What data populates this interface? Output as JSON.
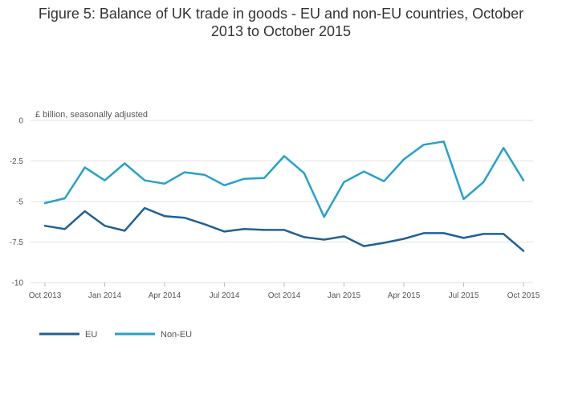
{
  "chart_data": {
    "type": "line",
    "title_line1": "Figure 5: Balance of UK trade in goods - EU and non-EU countries, October",
    "title_line2": "2013 to October 2015",
    "ylabel": "£ billion, seasonally adjusted",
    "ylim": [
      -10,
      0
    ],
    "yticks": [
      0,
      -2.5,
      -5,
      -7.5,
      -10
    ],
    "ytick_labels": [
      "0",
      "-2.5",
      "-5",
      "-7.5",
      "-10"
    ],
    "xtick_labels": [
      "Oct 2013",
      "Jan 2014",
      "Apr 2014",
      "Jul 2014",
      "Oct 2014",
      "Jan 2015",
      "Apr 2015",
      "Jul 2015",
      "Oct 2015"
    ],
    "xtick_indices": [
      0,
      3,
      6,
      9,
      12,
      15,
      18,
      21,
      24
    ],
    "categories": [
      "Oct 2013",
      "Nov 2013",
      "Dec 2013",
      "Jan 2014",
      "Feb 2014",
      "Mar 2014",
      "Apr 2014",
      "May 2014",
      "Jun 2014",
      "Jul 2014",
      "Aug 2014",
      "Sep 2014",
      "Oct 2014",
      "Nov 2014",
      "Dec 2014",
      "Jan 2015",
      "Feb 2015",
      "Mar 2015",
      "Apr 2015",
      "May 2015",
      "Jun 2015",
      "Jul 2015",
      "Aug 2015",
      "Sep 2015",
      "Oct 2015"
    ],
    "series": [
      {
        "name": "EU",
        "color": "#206095",
        "values": [
          -6.5,
          -6.7,
          -5.6,
          -6.5,
          -6.8,
          -5.4,
          -5.9,
          -6.0,
          -6.4,
          -6.85,
          -6.7,
          -6.75,
          -6.75,
          -7.2,
          -7.35,
          -7.15,
          -7.75,
          -7.55,
          -7.3,
          -6.95,
          -6.95,
          -7.25,
          -7.0,
          -7.0,
          -8.05
        ]
      },
      {
        "name": "Non-EU",
        "color": "#27a0cc",
        "values": [
          -5.1,
          -4.8,
          -2.9,
          -3.7,
          -2.65,
          -3.7,
          -3.9,
          -3.2,
          -3.35,
          -4.0,
          -3.6,
          -3.55,
          -2.2,
          -3.25,
          -5.95,
          -3.8,
          -3.15,
          -3.75,
          -2.4,
          -1.5,
          -1.3,
          -4.85,
          -3.8,
          -1.7,
          -3.7
        ]
      }
    ],
    "legend_position": "bottom-left"
  }
}
